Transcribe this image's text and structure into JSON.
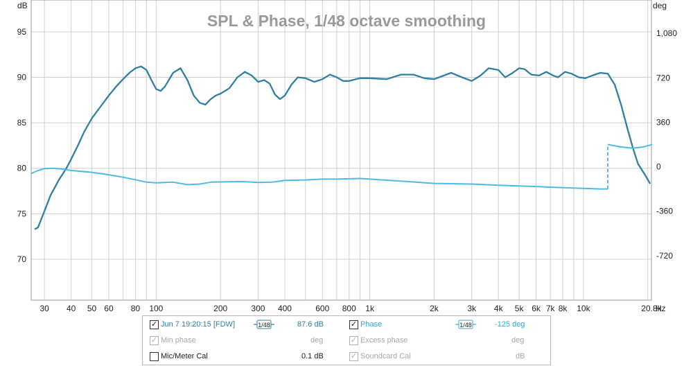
{
  "chart_data": {
    "type": "line",
    "title": "SPL & Phase, 1/48 octave smoothing",
    "xlabel": "Hz",
    "ylabel_left": "dB",
    "ylabel_right": "deg",
    "xscale": "log",
    "xlim": [
      26,
      20800
    ],
    "ylim_left": [
      65.5,
      98.5
    ],
    "ylim_right": [
      -1080,
      1350
    ],
    "grid": true,
    "x_ticks": [
      {
        "v": 30,
        "label": "30"
      },
      {
        "v": 40,
        "label": "40"
      },
      {
        "v": 50,
        "label": "50"
      },
      {
        "v": 60,
        "label": "60"
      },
      {
        "v": 80,
        "label": "80"
      },
      {
        "v": 100,
        "label": "100"
      },
      {
        "v": 200,
        "label": "200"
      },
      {
        "v": 300,
        "label": "300"
      },
      {
        "v": 400,
        "label": "400"
      },
      {
        "v": 600,
        "label": "600"
      },
      {
        "v": 800,
        "label": "800"
      },
      {
        "v": 1000,
        "label": "1k"
      },
      {
        "v": 2000,
        "label": "2k"
      },
      {
        "v": 3000,
        "label": "3k"
      },
      {
        "v": 4000,
        "label": "4k"
      },
      {
        "v": 5000,
        "label": "5k"
      },
      {
        "v": 6000,
        "label": "6k"
      },
      {
        "v": 7000,
        "label": "7k"
      },
      {
        "v": 8000,
        "label": "8k"
      },
      {
        "v": 10000,
        "label": "10k"
      },
      {
        "v": 20800,
        "label": "20.8k"
      }
    ],
    "y_ticks_left": [
      70,
      75,
      80,
      85,
      90,
      95
    ],
    "y_ticks_right": [
      {
        "v": -720,
        "label": "-720"
      },
      {
        "v": -360,
        "label": "-360"
      },
      {
        "v": 0,
        "label": "0"
      },
      {
        "v": 360,
        "label": "360"
      },
      {
        "v": 720,
        "label": "720"
      },
      {
        "v": 1080,
        "label": "1,080"
      }
    ],
    "series": [
      {
        "name": "SPL",
        "axis": "left",
        "color": "#2f7fa3",
        "points": [
          [
            27,
            73.3
          ],
          [
            28,
            73.5
          ],
          [
            30,
            75.3
          ],
          [
            32,
            77.0
          ],
          [
            35,
            78.7
          ],
          [
            38,
            80.0
          ],
          [
            40,
            81.0
          ],
          [
            43,
            82.5
          ],
          [
            46,
            84.0
          ],
          [
            50,
            85.5
          ],
          [
            55,
            86.8
          ],
          [
            60,
            88.0
          ],
          [
            65,
            89.0
          ],
          [
            70,
            89.8
          ],
          [
            75,
            90.5
          ],
          [
            80,
            91.0
          ],
          [
            85,
            91.2
          ],
          [
            90,
            90.8
          ],
          [
            95,
            89.7
          ],
          [
            100,
            88.7
          ],
          [
            105,
            88.5
          ],
          [
            110,
            89.0
          ],
          [
            120,
            90.5
          ],
          [
            130,
            91.0
          ],
          [
            140,
            89.7
          ],
          [
            150,
            88.0
          ],
          [
            160,
            87.2
          ],
          [
            170,
            87.0
          ],
          [
            180,
            87.6
          ],
          [
            190,
            88.0
          ],
          [
            200,
            88.2
          ],
          [
            220,
            88.8
          ],
          [
            240,
            90.0
          ],
          [
            260,
            90.6
          ],
          [
            280,
            90.2
          ],
          [
            300,
            89.5
          ],
          [
            320,
            89.7
          ],
          [
            340,
            89.3
          ],
          [
            360,
            88.1
          ],
          [
            380,
            87.6
          ],
          [
            400,
            88.0
          ],
          [
            430,
            89.2
          ],
          [
            460,
            90.0
          ],
          [
            500,
            89.9
          ],
          [
            550,
            89.5
          ],
          [
            600,
            89.8
          ],
          [
            650,
            90.3
          ],
          [
            700,
            90.0
          ],
          [
            750,
            89.6
          ],
          [
            800,
            89.6
          ],
          [
            900,
            89.9
          ],
          [
            1000,
            89.9
          ],
          [
            1200,
            89.8
          ],
          [
            1400,
            90.3
          ],
          [
            1600,
            90.3
          ],
          [
            1800,
            89.9
          ],
          [
            2000,
            89.8
          ],
          [
            2400,
            90.5
          ],
          [
            2700,
            90.0
          ],
          [
            3000,
            89.6
          ],
          [
            3300,
            90.2
          ],
          [
            3600,
            91.0
          ],
          [
            4000,
            90.8
          ],
          [
            4300,
            90.0
          ],
          [
            4600,
            90.4
          ],
          [
            5000,
            91.0
          ],
          [
            5300,
            90.9
          ],
          [
            5700,
            90.3
          ],
          [
            6200,
            90.2
          ],
          [
            6700,
            90.6
          ],
          [
            7200,
            90.2
          ],
          [
            7600,
            90.0
          ],
          [
            8200,
            90.6
          ],
          [
            8800,
            90.4
          ],
          [
            9500,
            90.0
          ],
          [
            10200,
            89.9
          ],
          [
            11000,
            90.2
          ],
          [
            12000,
            90.5
          ],
          [
            13000,
            90.4
          ],
          [
            14000,
            89.2
          ],
          [
            15000,
            87.0
          ],
          [
            16000,
            84.5
          ],
          [
            17000,
            82.3
          ],
          [
            18000,
            80.5
          ],
          [
            19500,
            79.2
          ],
          [
            20500,
            78.3
          ]
        ]
      },
      {
        "name": "Phase",
        "axis": "right",
        "color": "#4dbbe8",
        "points": [
          [
            26,
            -55
          ],
          [
            28,
            -30
          ],
          [
            30,
            -15
          ],
          [
            33,
            -12
          ],
          [
            36,
            -18
          ],
          [
            40,
            -30
          ],
          [
            50,
            -45
          ],
          [
            60,
            -65
          ],
          [
            70,
            -85
          ],
          [
            80,
            -105
          ],
          [
            90,
            -125
          ],
          [
            100,
            -130
          ],
          [
            120,
            -125
          ],
          [
            140,
            -145
          ],
          [
            160,
            -140
          ],
          [
            180,
            -125
          ],
          [
            250,
            -120
          ],
          [
            300,
            -127
          ],
          [
            350,
            -125
          ],
          [
            400,
            -110
          ],
          [
            500,
            -107
          ],
          [
            600,
            -100
          ],
          [
            700,
            -100
          ],
          [
            900,
            -95
          ],
          [
            1000,
            -100
          ],
          [
            1500,
            -120
          ],
          [
            2000,
            -135
          ],
          [
            3000,
            -140
          ],
          [
            4000,
            -150
          ],
          [
            5000,
            -155
          ],
          [
            6000,
            -160
          ],
          [
            7000,
            -165
          ],
          [
            8000,
            -170
          ],
          [
            10000,
            -175
          ],
          [
            12000,
            -180
          ],
          [
            13000,
            -180
          ],
          [
            13000,
            180
          ],
          [
            15000,
            160
          ],
          [
            17000,
            150
          ],
          [
            19000,
            160
          ],
          [
            21000,
            180
          ]
        ]
      }
    ]
  },
  "legend": {
    "row1": {
      "measurement": "Jun 7 19:20:15 [FDW]",
      "smoothing": "1/48",
      "spl_value": "87.6 dB",
      "series_label": "Phase",
      "phase_smoothing": "1/48",
      "phase_value": "-125 deg"
    },
    "row2": {
      "label": "Min phase",
      "unit": "deg",
      "label2": "Excess phase",
      "unit2": "deg"
    },
    "row3": {
      "label": "Mic/Meter Cal",
      "value": "0.1 dB",
      "label2": "Soundcard Cal",
      "unit2": "dB"
    }
  }
}
